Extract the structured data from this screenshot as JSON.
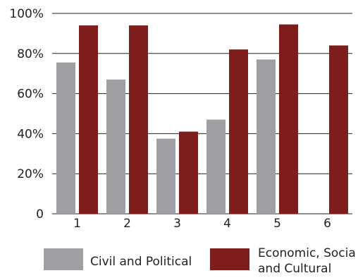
{
  "chart_data": {
    "type": "bar",
    "categories": [
      "1",
      "2",
      "3",
      "4",
      "5",
      "6"
    ],
    "series": [
      {
        "name": "Civil and Political",
        "color": "#9d9fa2",
        "values": [
          75.5,
          67,
          37.5,
          47,
          77,
          null
        ]
      },
      {
        "name": "Economic, Socia\nand Cultural",
        "color": "#7e1e1c",
        "values": [
          94,
          94,
          41,
          82,
          94.5,
          84
        ]
      }
    ],
    "ylim": [
      0,
      100
    ],
    "yticks": [
      0,
      20,
      40,
      60,
      80,
      100
    ],
    "ytick_labels": [
      "0",
      "20%",
      "40%",
      "60%",
      "80%",
      "100%"
    ],
    "grid": true,
    "legend_position": "bottom",
    "title": "",
    "xlabel": "",
    "ylabel": ""
  }
}
